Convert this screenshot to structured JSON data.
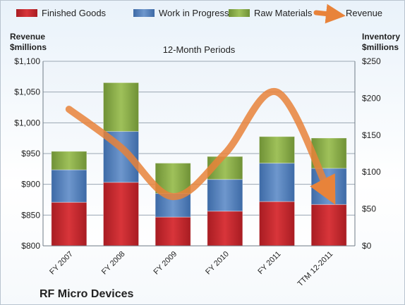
{
  "chart_data": {
    "type": "bar",
    "stacked": true,
    "title": "12-Month Periods",
    "company": "RF Micro Devices",
    "left_axis": {
      "label_line1": "Revenue",
      "label_line2": "$millions",
      "range": [
        800,
        1100
      ],
      "ticks": [
        "$800",
        "$850",
        "$900",
        "$950",
        "$1,000",
        "$1,050",
        "$1,100"
      ],
      "tick_values": [
        800,
        850,
        900,
        950,
        1000,
        1050,
        1100
      ]
    },
    "right_axis": {
      "label_line1": "Inventory",
      "label_line2": "$millions",
      "range": [
        0,
        250
      ],
      "ticks": [
        "$0",
        "$50",
        "$100",
        "$150",
        "$200",
        "$250"
      ],
      "tick_values": [
        0,
        50,
        100,
        150,
        200,
        250
      ]
    },
    "categories": [
      "FY 2007",
      "FY 2008",
      "FY 2009",
      "FY 2010",
      "FY 2011",
      "TTM 12-2011"
    ],
    "series": [
      {
        "name": "Finished Goods",
        "axis": "right",
        "color": "#c0262c",
        "values": [
          59,
          86,
          39,
          47,
          60,
          56
        ]
      },
      {
        "name": "Work in Progress",
        "axis": "right",
        "color": "#4f7fbd",
        "values": [
          44,
          69,
          32,
          43,
          52,
          49
        ]
      },
      {
        "name": "Raw Materials",
        "axis": "right",
        "color": "#8cb04a",
        "values": [
          25,
          66,
          41,
          31,
          36,
          41
        ]
      },
      {
        "name": "Revenue",
        "axis": "left",
        "type": "line",
        "color": "#e8833a",
        "values": [
          1022,
          960,
          880,
          950,
          1050,
          887
        ]
      }
    ],
    "grid": true,
    "legend_position": "top"
  }
}
